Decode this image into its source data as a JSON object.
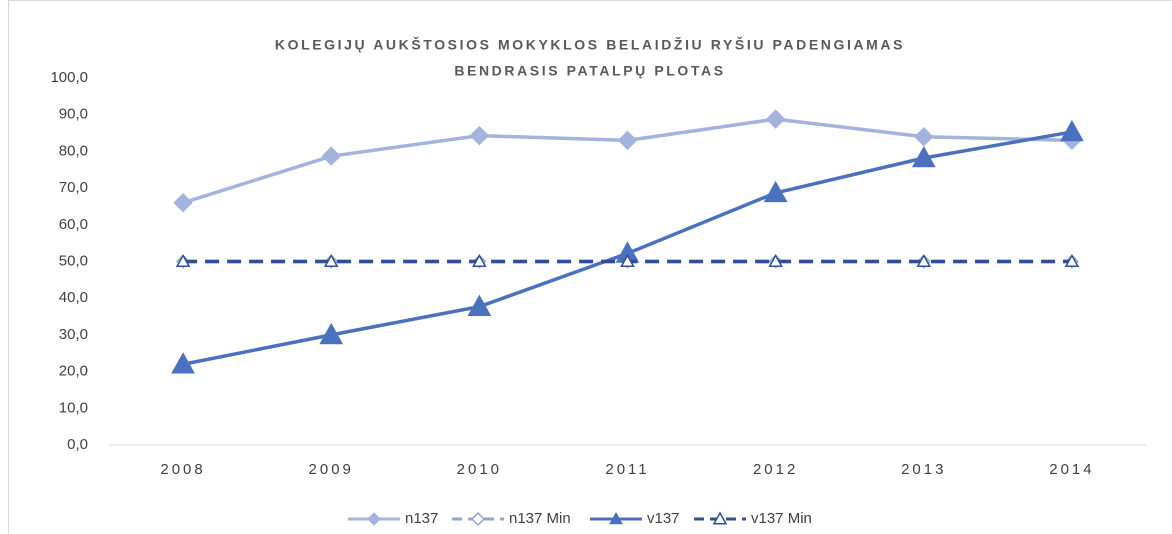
{
  "chart_data": {
    "type": "line",
    "title": [
      "KOLEGIJŲ AUKŠTOSIOS MOKYKLOS BELAIDŽIU RYŠIU PADENGIAMAS",
      "BENDRASIS PATALPŲ PLOTAS"
    ],
    "categories": [
      "2008",
      "2009",
      "2010",
      "2011",
      "2012",
      "2013",
      "2014"
    ],
    "series": [
      {
        "name": "n137",
        "color": "#a3b3dd",
        "marker": "diamond",
        "dashed": false,
        "hollow": false,
        "values": [
          66.0,
          78.7,
          84.3,
          83.0,
          88.8,
          84.0,
          83.0
        ]
      },
      {
        "name": "n137 Min",
        "color": "#8fa3d6",
        "marker": "diamond",
        "dashed": true,
        "hollow": true,
        "values": [
          50,
          50,
          50,
          50,
          50,
          50,
          50
        ]
      },
      {
        "name": "v137",
        "color": "#4a70c0",
        "marker": "triangle",
        "dashed": false,
        "hollow": false,
        "values": [
          22.0,
          30.0,
          37.7,
          52.2,
          68.7,
          78.2,
          85.3
        ]
      },
      {
        "name": "v137 Min",
        "color": "#2f4f96",
        "marker": "triangle",
        "dashed": true,
        "hollow": true,
        "values": [
          50,
          50,
          50,
          50,
          50,
          50,
          50
        ]
      }
    ],
    "ylim": [
      0,
      100
    ],
    "yticks": [
      {
        "value": 0,
        "label": "0,0"
      },
      {
        "value": 10,
        "label": "10,0"
      },
      {
        "value": 20,
        "label": "20,0"
      },
      {
        "value": 30,
        "label": "30,0"
      },
      {
        "value": 40,
        "label": "40,0"
      },
      {
        "value": 50,
        "label": "50,0"
      },
      {
        "value": 60,
        "label": "60,0"
      },
      {
        "value": 70,
        "label": "70,0"
      },
      {
        "value": 80,
        "label": "80,0"
      },
      {
        "value": 90,
        "label": "90,0"
      },
      {
        "value": 100,
        "label": "100,0"
      }
    ],
    "grid": false,
    "legend": "bottom"
  }
}
